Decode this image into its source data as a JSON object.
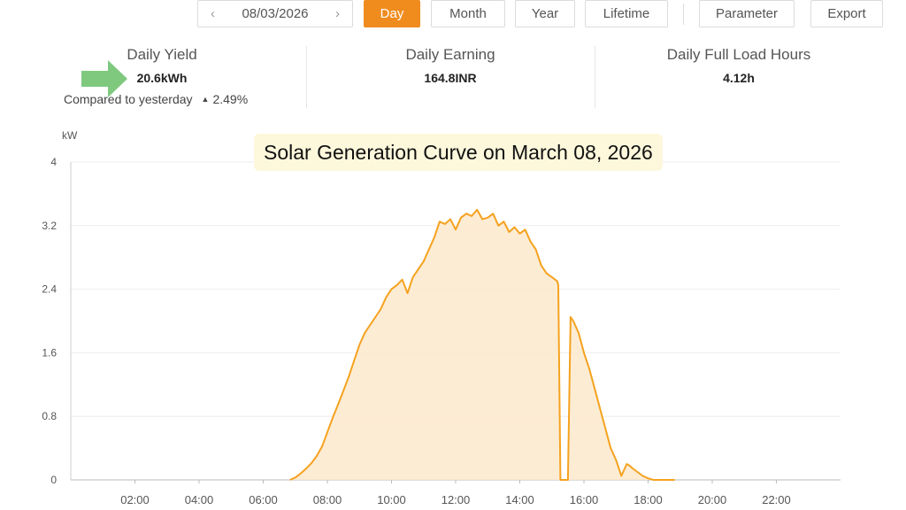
{
  "toolbar": {
    "date": "08/03/2026",
    "prev_icon": "chevron-left-icon",
    "next_icon": "chevron-right-icon",
    "tabs": [
      "Day",
      "Month",
      "Year",
      "Lifetime"
    ],
    "active_tab": "Day",
    "parameter_label": "Parameter",
    "export_label": "Export"
  },
  "stats": {
    "yield": {
      "label": "Daily Yield",
      "value": "20.6kWh"
    },
    "compare_label": "Compared to yesterday",
    "compare_icon": "up-triangle-icon",
    "compare_value": "2.49%",
    "earning": {
      "label": "Daily Earning",
      "value": "164.8INR"
    },
    "load_hours": {
      "label": "Daily Full Load Hours",
      "value": "4.12h"
    }
  },
  "annotation": {
    "arrow_icon": "green-arrow-right-icon",
    "arrow_color": "#7fc97f"
  },
  "colors": {
    "accent": "#f08c1e",
    "line": "#f5a21f",
    "fill": "#fde9cc"
  },
  "chart_data": {
    "type": "area",
    "title": "Solar Generation Curve on March 08, 2026",
    "ylabel": "kW",
    "xlabel": "",
    "ylim": [
      0,
      4
    ],
    "xlim": [
      "00:00",
      "24:00"
    ],
    "y_ticks": [
      "0",
      "0.8",
      "1.6",
      "2.4",
      "3.2",
      "4"
    ],
    "x_ticks": [
      "02:00",
      "04:00",
      "06:00",
      "08:00",
      "10:00",
      "12:00",
      "14:00",
      "16:00",
      "18:00",
      "20:00",
      "22:00"
    ],
    "grid": true,
    "series": [
      {
        "x": [
          "06:50",
          "07:00",
          "07:10",
          "07:20",
          "07:30",
          "07:40",
          "07:50",
          "08:00",
          "08:10",
          "08:20",
          "08:30",
          "08:40",
          "08:50",
          "09:00",
          "09:10",
          "09:20",
          "09:30",
          "09:40",
          "09:50",
          "10:00",
          "10:10",
          "10:20",
          "10:30",
          "10:40",
          "10:50",
          "11:00",
          "11:10",
          "11:20",
          "11:30",
          "11:40",
          "11:50",
          "12:00",
          "12:10",
          "12:20",
          "12:30",
          "12:40",
          "12:50",
          "13:00",
          "13:10",
          "13:20",
          "13:30",
          "13:40",
          "13:50",
          "14:00",
          "14:10",
          "14:20",
          "14:30",
          "14:40",
          "14:50",
          "15:00",
          "15:10",
          "15:12",
          "15:16",
          "15:25",
          "15:30",
          "15:35",
          "15:40",
          "15:50",
          "16:00",
          "16:10",
          "16:20",
          "16:30",
          "16:40",
          "16:50",
          "17:00",
          "17:10",
          "17:20",
          "17:25",
          "17:30",
          "17:40",
          "17:50",
          "18:00",
          "18:10",
          "18:20",
          "18:30",
          "18:40",
          "18:50"
        ],
        "values": [
          0.0,
          0.03,
          0.08,
          0.14,
          0.21,
          0.3,
          0.42,
          0.6,
          0.78,
          0.95,
          1.12,
          1.3,
          1.5,
          1.7,
          1.85,
          1.95,
          2.05,
          2.15,
          2.3,
          2.4,
          2.45,
          2.52,
          2.35,
          2.55,
          2.65,
          2.75,
          2.9,
          3.05,
          3.25,
          3.22,
          3.28,
          3.15,
          3.3,
          3.35,
          3.32,
          3.4,
          3.28,
          3.3,
          3.35,
          3.2,
          3.25,
          3.12,
          3.18,
          3.1,
          3.15,
          3.0,
          2.9,
          2.7,
          2.6,
          2.55,
          2.5,
          2.45,
          0.0,
          0.0,
          0.0,
          2.05,
          2.0,
          1.85,
          1.6,
          1.4,
          1.15,
          0.9,
          0.65,
          0.4,
          0.25,
          0.05,
          0.2,
          0.18,
          0.15,
          0.1,
          0.05,
          0.02,
          0.0,
          0.0,
          0.0,
          0.0,
          0.0
        ]
      }
    ]
  }
}
